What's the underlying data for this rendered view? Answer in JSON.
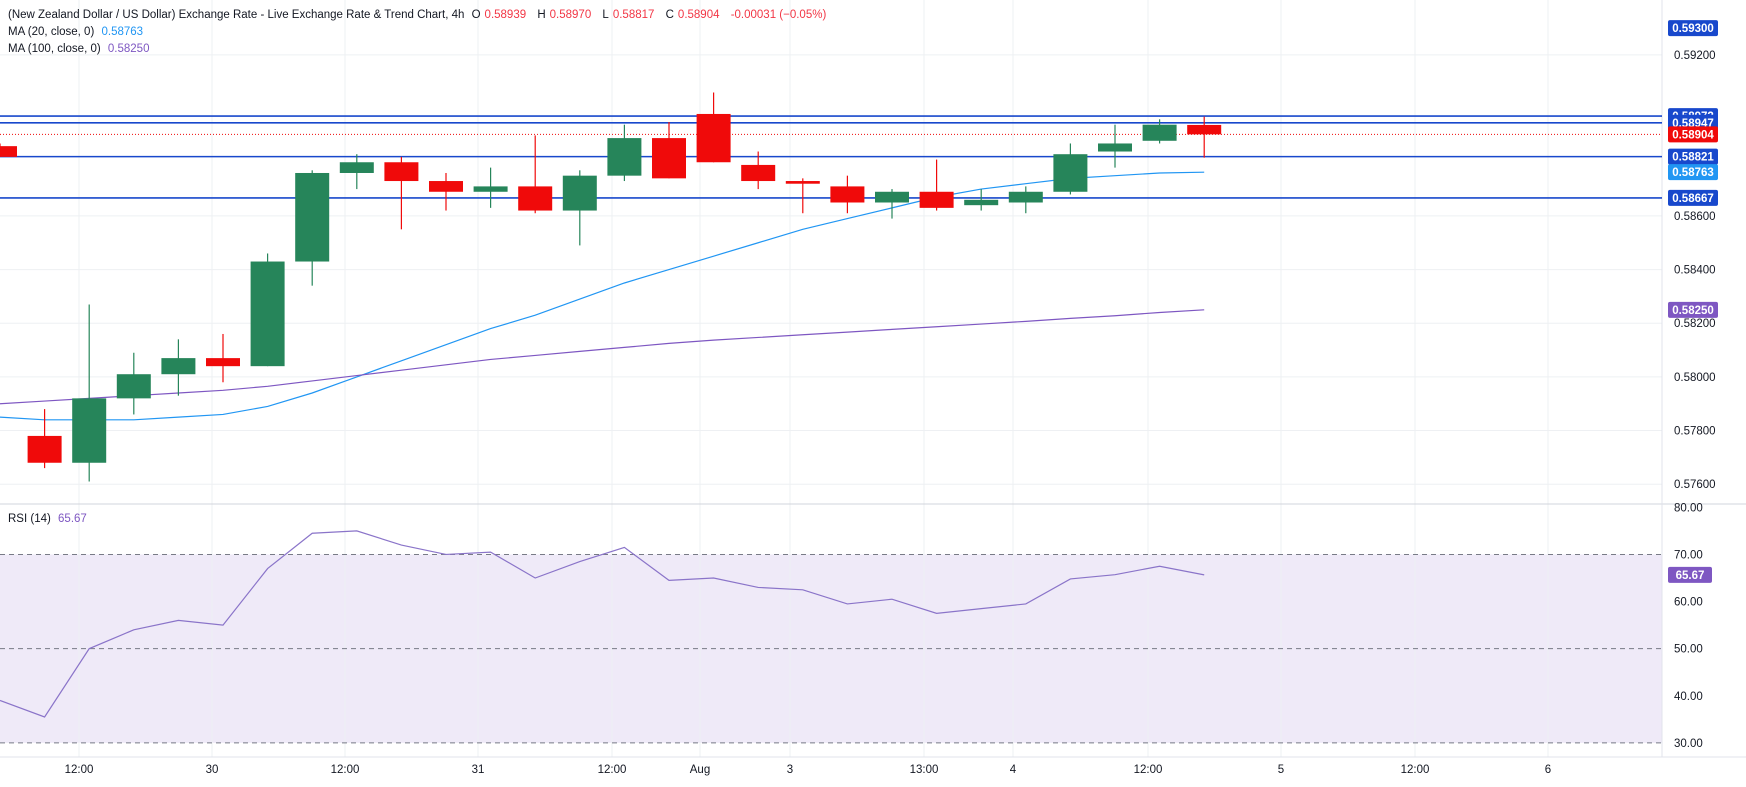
{
  "legend": {
    "title": "(New Zealand Dollar / US Dollar) Exchange Rate - Live Exchange Rate & Trend Chart, 4h",
    "open_label": "O",
    "open": "0.58939",
    "high_label": "H",
    "high": "0.58970",
    "low_label": "L",
    "low": "0.58817",
    "close_label": "C",
    "close": "0.58904",
    "change": "-0.00031 (−0.05%)",
    "ma20_label": "MA (20, close, 0)",
    "ma20_value": "0.58763",
    "ma100_label": "MA (100, close, 0)",
    "ma100_value": "0.58250",
    "rsi_label": "RSI (14)",
    "rsi_value": "65.67"
  },
  "colors": {
    "up": "#26855a",
    "down": "#f00a0a",
    "ma20": "#2196f3",
    "ma100": "#7e57c2",
    "hline": "#1848cc",
    "rsi_line": "#8a74c9",
    "rsi_band": "#efeaf8",
    "grid": "#eef0f3"
  },
  "chart_data": [
    {
      "type": "candlestick",
      "ylim": [
        0.5753,
        0.5936
      ],
      "y_ticks": [
        "0.59200",
        "0.58600",
        "0.58400",
        "0.58200",
        "0.58000",
        "0.57800",
        "0.57600"
      ],
      "x_ticks": [
        "12:00",
        "30",
        "12:00",
        "31",
        "12:00",
        "Aug",
        "3",
        "13:00",
        "4",
        "12:00",
        "5",
        "12:00",
        "6"
      ],
      "candles": [
        {
          "o": 0.5886,
          "h": 0.5887,
          "l": 0.5882,
          "c": 0.5882
        },
        {
          "o": 0.5778,
          "h": 0.5788,
          "l": 0.5766,
          "c": 0.5768
        },
        {
          "o": 0.5768,
          "h": 0.5827,
          "l": 0.5761,
          "c": 0.5792
        },
        {
          "o": 0.5792,
          "h": 0.5809,
          "l": 0.5786,
          "c": 0.5801
        },
        {
          "o": 0.5801,
          "h": 0.5814,
          "l": 0.5793,
          "c": 0.5807
        },
        {
          "o": 0.5807,
          "h": 0.5816,
          "l": 0.5798,
          "c": 0.5804
        },
        {
          "o": 0.5804,
          "h": 0.5846,
          "l": 0.5804,
          "c": 0.5843
        },
        {
          "o": 0.5843,
          "h": 0.5877,
          "l": 0.5834,
          "c": 0.5876
        },
        {
          "o": 0.5876,
          "h": 0.5883,
          "l": 0.587,
          "c": 0.588
        },
        {
          "o": 0.588,
          "h": 0.5882,
          "l": 0.5855,
          "c": 0.5873
        },
        {
          "o": 0.5873,
          "h": 0.5876,
          "l": 0.5862,
          "c": 0.5869
        },
        {
          "o": 0.5869,
          "h": 0.5878,
          "l": 0.5863,
          "c": 0.5871
        },
        {
          "o": 0.5871,
          "h": 0.589,
          "l": 0.5861,
          "c": 0.5862
        },
        {
          "o": 0.5862,
          "h": 0.5877,
          "l": 0.5849,
          "c": 0.5875
        },
        {
          "o": 0.5875,
          "h": 0.5894,
          "l": 0.5873,
          "c": 0.5889
        },
        {
          "o": 0.5889,
          "h": 0.5895,
          "l": 0.5874,
          "c": 0.5874
        },
        {
          "o": 0.5898,
          "h": 0.5906,
          "l": 0.588,
          "c": 0.588
        },
        {
          "o": 0.5879,
          "h": 0.5884,
          "l": 0.587,
          "c": 0.5873
        },
        {
          "o": 0.5873,
          "h": 0.5874,
          "l": 0.5861,
          "c": 0.5872
        },
        {
          "o": 0.5871,
          "h": 0.5875,
          "l": 0.5861,
          "c": 0.5865
        },
        {
          "o": 0.5865,
          "h": 0.587,
          "l": 0.5859,
          "c": 0.5869
        },
        {
          "o": 0.5869,
          "h": 0.5881,
          "l": 0.5862,
          "c": 0.5863
        },
        {
          "o": 0.5864,
          "h": 0.587,
          "l": 0.5862,
          "c": 0.5866
        },
        {
          "o": 0.5865,
          "h": 0.5871,
          "l": 0.5861,
          "c": 0.5869
        },
        {
          "o": 0.5869,
          "h": 0.5887,
          "l": 0.5868,
          "c": 0.5883
        },
        {
          "o": 0.5884,
          "h": 0.5894,
          "l": 0.5878,
          "c": 0.5887
        },
        {
          "o": 0.5888,
          "h": 0.5896,
          "l": 0.5887,
          "c": 0.5894
        },
        {
          "o": 0.58939,
          "h": 0.5897,
          "l": 0.58817,
          "c": 0.58904
        }
      ],
      "series": [
        {
          "name": "MA (20, close, 0)",
          "values": [
            0.5785,
            0.5784,
            0.5784,
            0.5784,
            0.5785,
            0.5786,
            0.5789,
            0.5794,
            0.58,
            0.5806,
            0.5812,
            0.5818,
            0.5823,
            0.5829,
            0.5835,
            0.584,
            0.5845,
            0.585,
            0.5855,
            0.5859,
            0.5863,
            0.5867,
            0.587,
            0.5872,
            0.5874,
            0.5875,
            0.5876,
            0.58763
          ]
        },
        {
          "name": "MA (100, close, 0)",
          "values": [
            0.579,
            0.5791,
            0.5792,
            0.5793,
            0.5794,
            0.5795,
            0.57965,
            0.57985,
            0.58005,
            0.58025,
            0.58045,
            0.58065,
            0.5808,
            0.58095,
            0.5811,
            0.58125,
            0.58137,
            0.58147,
            0.58157,
            0.58167,
            0.58177,
            0.58187,
            0.58197,
            0.58207,
            0.58218,
            0.58228,
            0.5824,
            0.5825
          ]
        }
      ],
      "horizontal_lines": [
        0.58972,
        0.58947,
        0.58821,
        0.58667
      ],
      "price_labels": [
        {
          "value": 0.593,
          "text": "0.59300",
          "color": "#1848cc"
        },
        {
          "value": 0.58972,
          "text": "0.58972",
          "color": "#1848cc"
        },
        {
          "value": 0.58947,
          "text": "0.58947",
          "color": "#1848cc"
        },
        {
          "value": 0.58904,
          "text": "0.58904",
          "color": "#f00a0a"
        },
        {
          "value": 0.58821,
          "text": "0.58821",
          "color": "#1848cc"
        },
        {
          "value": 0.58763,
          "text": "0.58763",
          "color": "#2196f3"
        },
        {
          "value": 0.58667,
          "text": "0.58667",
          "color": "#1848cc"
        },
        {
          "value": 0.5825,
          "text": "0.58250",
          "color": "#7e57c2"
        }
      ]
    },
    {
      "type": "line",
      "name": "RSI (14)",
      "ylim": [
        27,
        80.5
      ],
      "y_ticks": [
        "80.00",
        "70.00",
        "60.00",
        "50.00",
        "40.00",
        "30.00"
      ],
      "levels": [
        70,
        50,
        30
      ],
      "values": [
        39,
        35.5,
        50,
        54,
        56,
        55,
        67,
        74.5,
        75,
        72,
        70,
        70.5,
        65,
        68.5,
        71.5,
        64.5,
        65,
        63,
        62.5,
        59.5,
        60.5,
        57.5,
        58.5,
        59.5,
        64.8,
        65.7,
        67.5,
        65.67
      ],
      "value_label": "65.67"
    }
  ]
}
